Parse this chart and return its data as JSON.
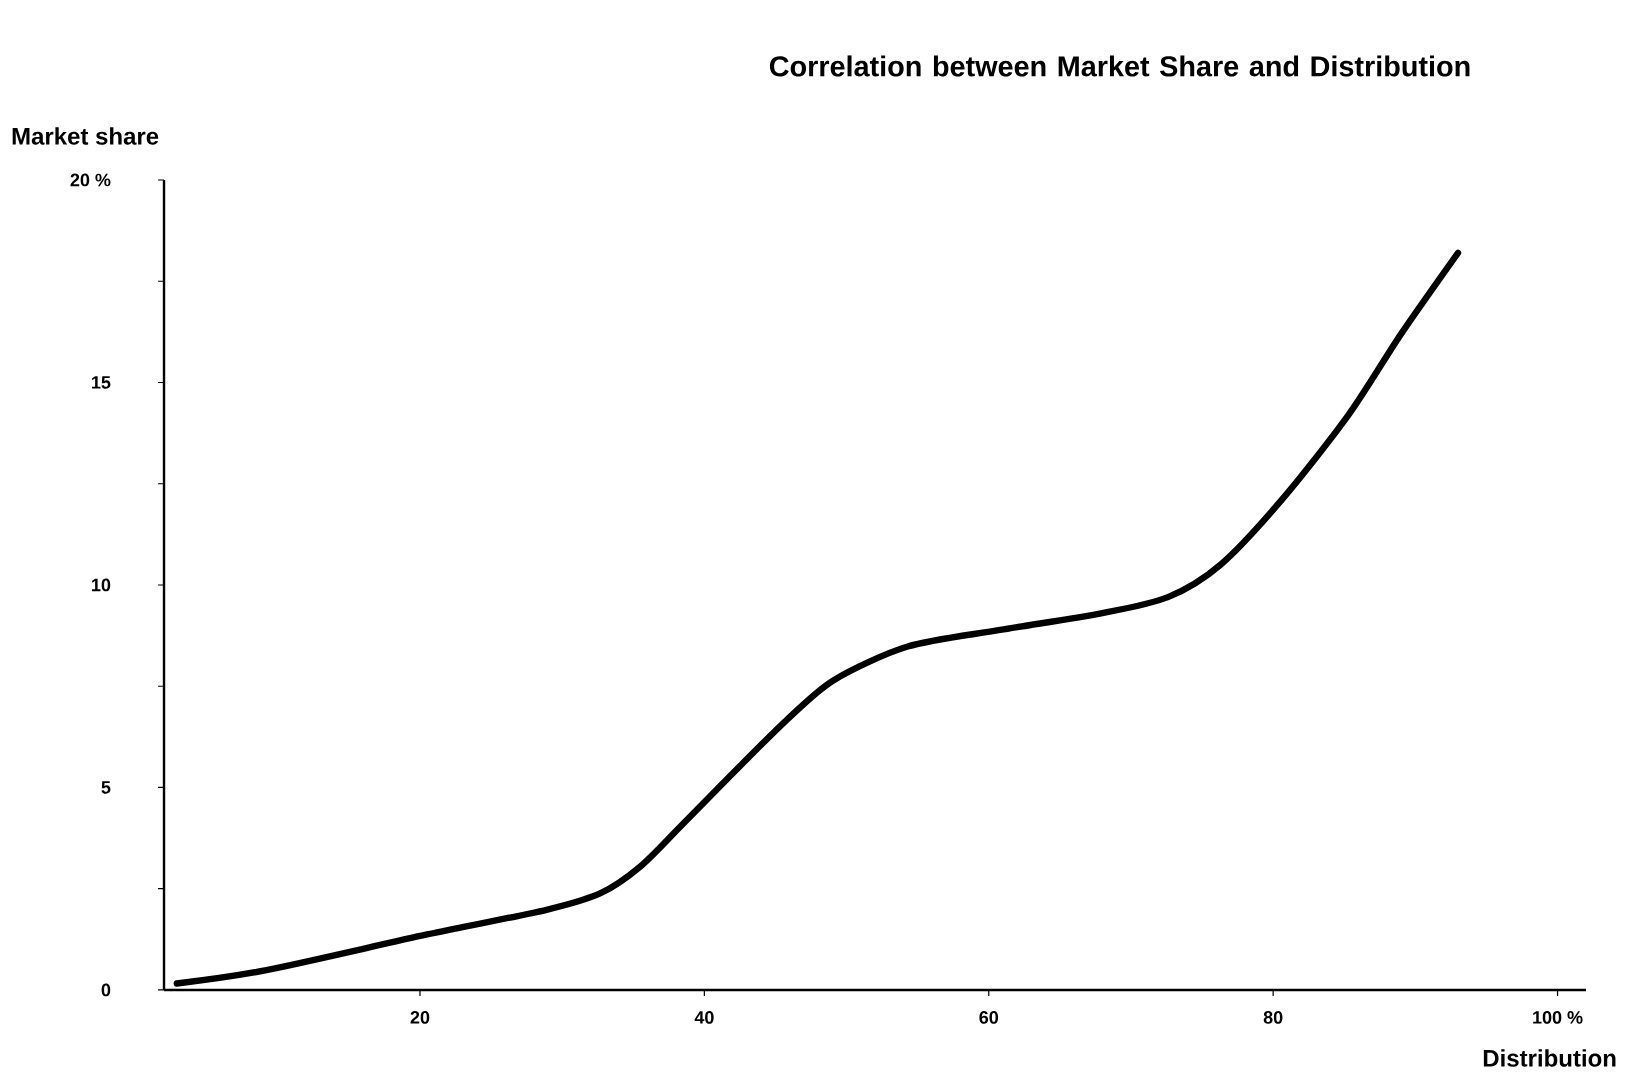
{
  "chart_data": {
    "type": "line",
    "title": "Correlation between Market Share and Distribution",
    "xlabel": "Distribution",
    "ylabel": "Market share",
    "x": [
      2.9,
      9.2,
      20.5,
      28.9,
      32.7,
      35.5,
      38.3,
      42,
      45.8,
      49.1,
      54.3,
      60.8,
      67.9,
      72.6,
      76.3,
      80.6,
      85.3,
      89,
      93
    ],
    "series": [
      {
        "color": "#000000",
        "values": [
          0.16,
          0.49,
          1.37,
          1.98,
          2.39,
          3.05,
          4.03,
          5.35,
          6.67,
          7.65,
          8.48,
          8.89,
          9.3,
          9.7,
          10.5,
          12.1,
          14.2,
          16.2,
          18.2
        ]
      }
    ],
    "xlim": [
      2,
      102
    ],
    "ylim": [
      0,
      20
    ],
    "xticks": [
      20,
      40,
      60,
      80,
      {
        "value": 100,
        "label": "100 %"
      }
    ],
    "yticks": [
      0,
      {
        "value": 2.5,
        "label": null
      },
      5,
      {
        "value": 7.5,
        "label": null
      },
      10,
      {
        "value": 12.5,
        "label": null
      },
      15,
      {
        "value": 17.5,
        "label": null
      },
      {
        "value": 20,
        "label": "20 %"
      }
    ],
    "grid": false
  }
}
